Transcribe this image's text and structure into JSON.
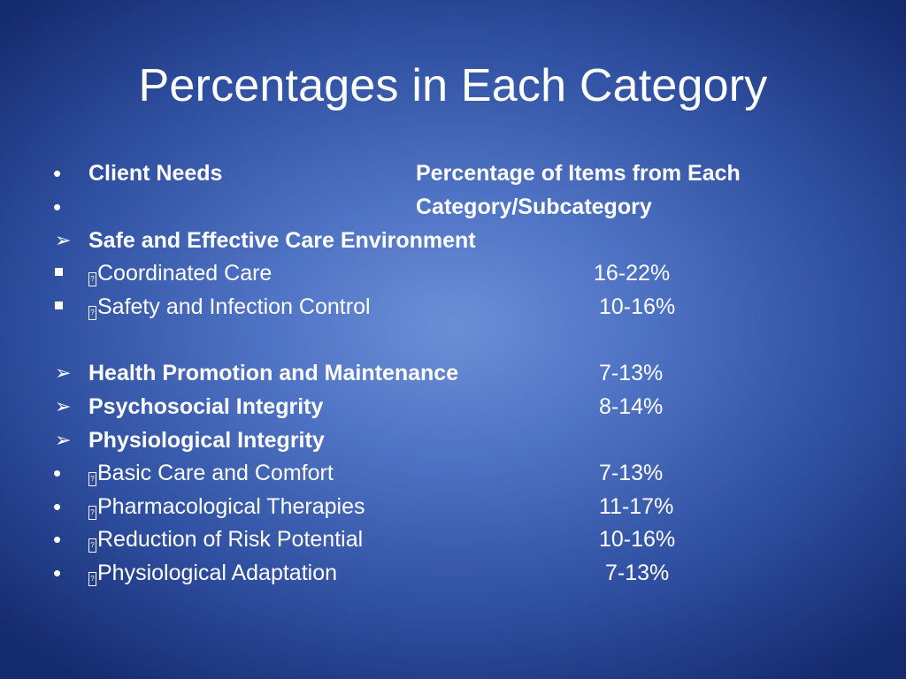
{
  "slide": {
    "title": "Percentages in Each Category",
    "header": {
      "col1": "Client Needs",
      "col2_line1": "Percentage of Items from Each",
      "col2_line2": "Category/Subcategory"
    },
    "items": [
      {
        "bullet": "arrow",
        "label": "Safe and Effective Care Environment",
        "bold": true,
        "percent": ""
      },
      {
        "bullet": "square",
        "label": "Coordinated Care",
        "bold": false,
        "percent": "16-22%"
      },
      {
        "bullet": "square",
        "label": "Safety and Infection Control",
        "bold": false,
        "percent": "10-16%"
      },
      {
        "bullet": "arrow",
        "label": "Health Promotion and Maintenance",
        "bold": true,
        "percent": "7-13%"
      },
      {
        "bullet": "arrow",
        "label": "Psychosocial Integrity",
        "bold": true,
        "percent": "8-14%"
      },
      {
        "bullet": "arrow",
        "label": "Physiological Integrity",
        "bold": true,
        "percent": ""
      },
      {
        "bullet": "dot",
        "label": "Basic Care and Comfort",
        "bold": false,
        "percent": "7-13%"
      },
      {
        "bullet": "dot",
        "label": "Pharmacological Therapies",
        "bold": false,
        "percent": "11-17%"
      },
      {
        "bullet": "dot",
        "label": "Reduction of Risk Potential",
        "bold": false,
        "percent": "10-16%"
      },
      {
        "bullet": "dot",
        "label": "Physiological Adaptation",
        "bold": false,
        "percent": "7-13%"
      }
    ]
  },
  "colors": {
    "background_center": "#6b8fd6",
    "background_edge": "#142a6e",
    "text": "#ffffff"
  },
  "icons": {
    "dot": "bullet-dot-icon",
    "arrow": "arrow-bullet-icon",
    "square": "square-bullet-icon",
    "missing_glyph": "missing-glyph-icon"
  }
}
